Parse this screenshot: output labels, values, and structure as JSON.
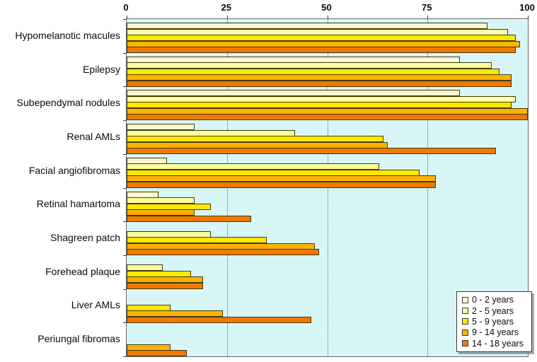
{
  "chart_data": {
    "type": "bar",
    "orientation": "horizontal",
    "title": "",
    "xlabel": "",
    "ylabel": "",
    "xlim": [
      0,
      100
    ],
    "x_ticks": [
      0,
      25,
      50,
      75,
      100
    ],
    "x_tick_labels": [
      "0",
      "25",
      "50",
      "75",
      "100"
    ],
    "grid": "vertical dotted at 25, 50, 75",
    "legend_position": "bottom-right",
    "plot_bg_color": "#D8F6F8",
    "bar_border_color": "#3F3A10",
    "categories": [
      "Hypomelanotic macules",
      "Epilepsy",
      "Subependymal nodules",
      "Renal AMLs",
      "Facial angiofibromas",
      "Retinal hamartoma",
      "Shagreen patch",
      "Forehead plaque",
      "Liver AMLs",
      "Periungal fibromas"
    ],
    "series": [
      {
        "name": "0 - 2 years",
        "color": "#FFF6CE",
        "values": [
          90,
          83,
          83,
          17,
          10,
          8,
          0,
          0,
          0,
          0
        ]
      },
      {
        "name": "2 - 5 years",
        "color": "#FFFF9E",
        "values": [
          95,
          91,
          97,
          42,
          63,
          17,
          21,
          9,
          0,
          0
        ]
      },
      {
        "name": "5 - 9 years",
        "color": "#FFE800",
        "values": [
          97,
          93,
          96,
          64,
          73,
          21,
          35,
          16,
          11,
          0
        ]
      },
      {
        "name": "9 - 14 years",
        "color": "#FFB200",
        "values": [
          98,
          96,
          100,
          65,
          77,
          17,
          47,
          19,
          24,
          11
        ]
      },
      {
        "name": "14 - 18 years",
        "color": "#EF7A00",
        "values": [
          97,
          96,
          100,
          92,
          77,
          31,
          48,
          19,
          46,
          15
        ]
      }
    ]
  },
  "legend": {
    "items": [
      "0 - 2 years",
      "2 - 5 years",
      "5 - 9 years",
      "9 - 14 years",
      "14 - 18 years"
    ]
  }
}
